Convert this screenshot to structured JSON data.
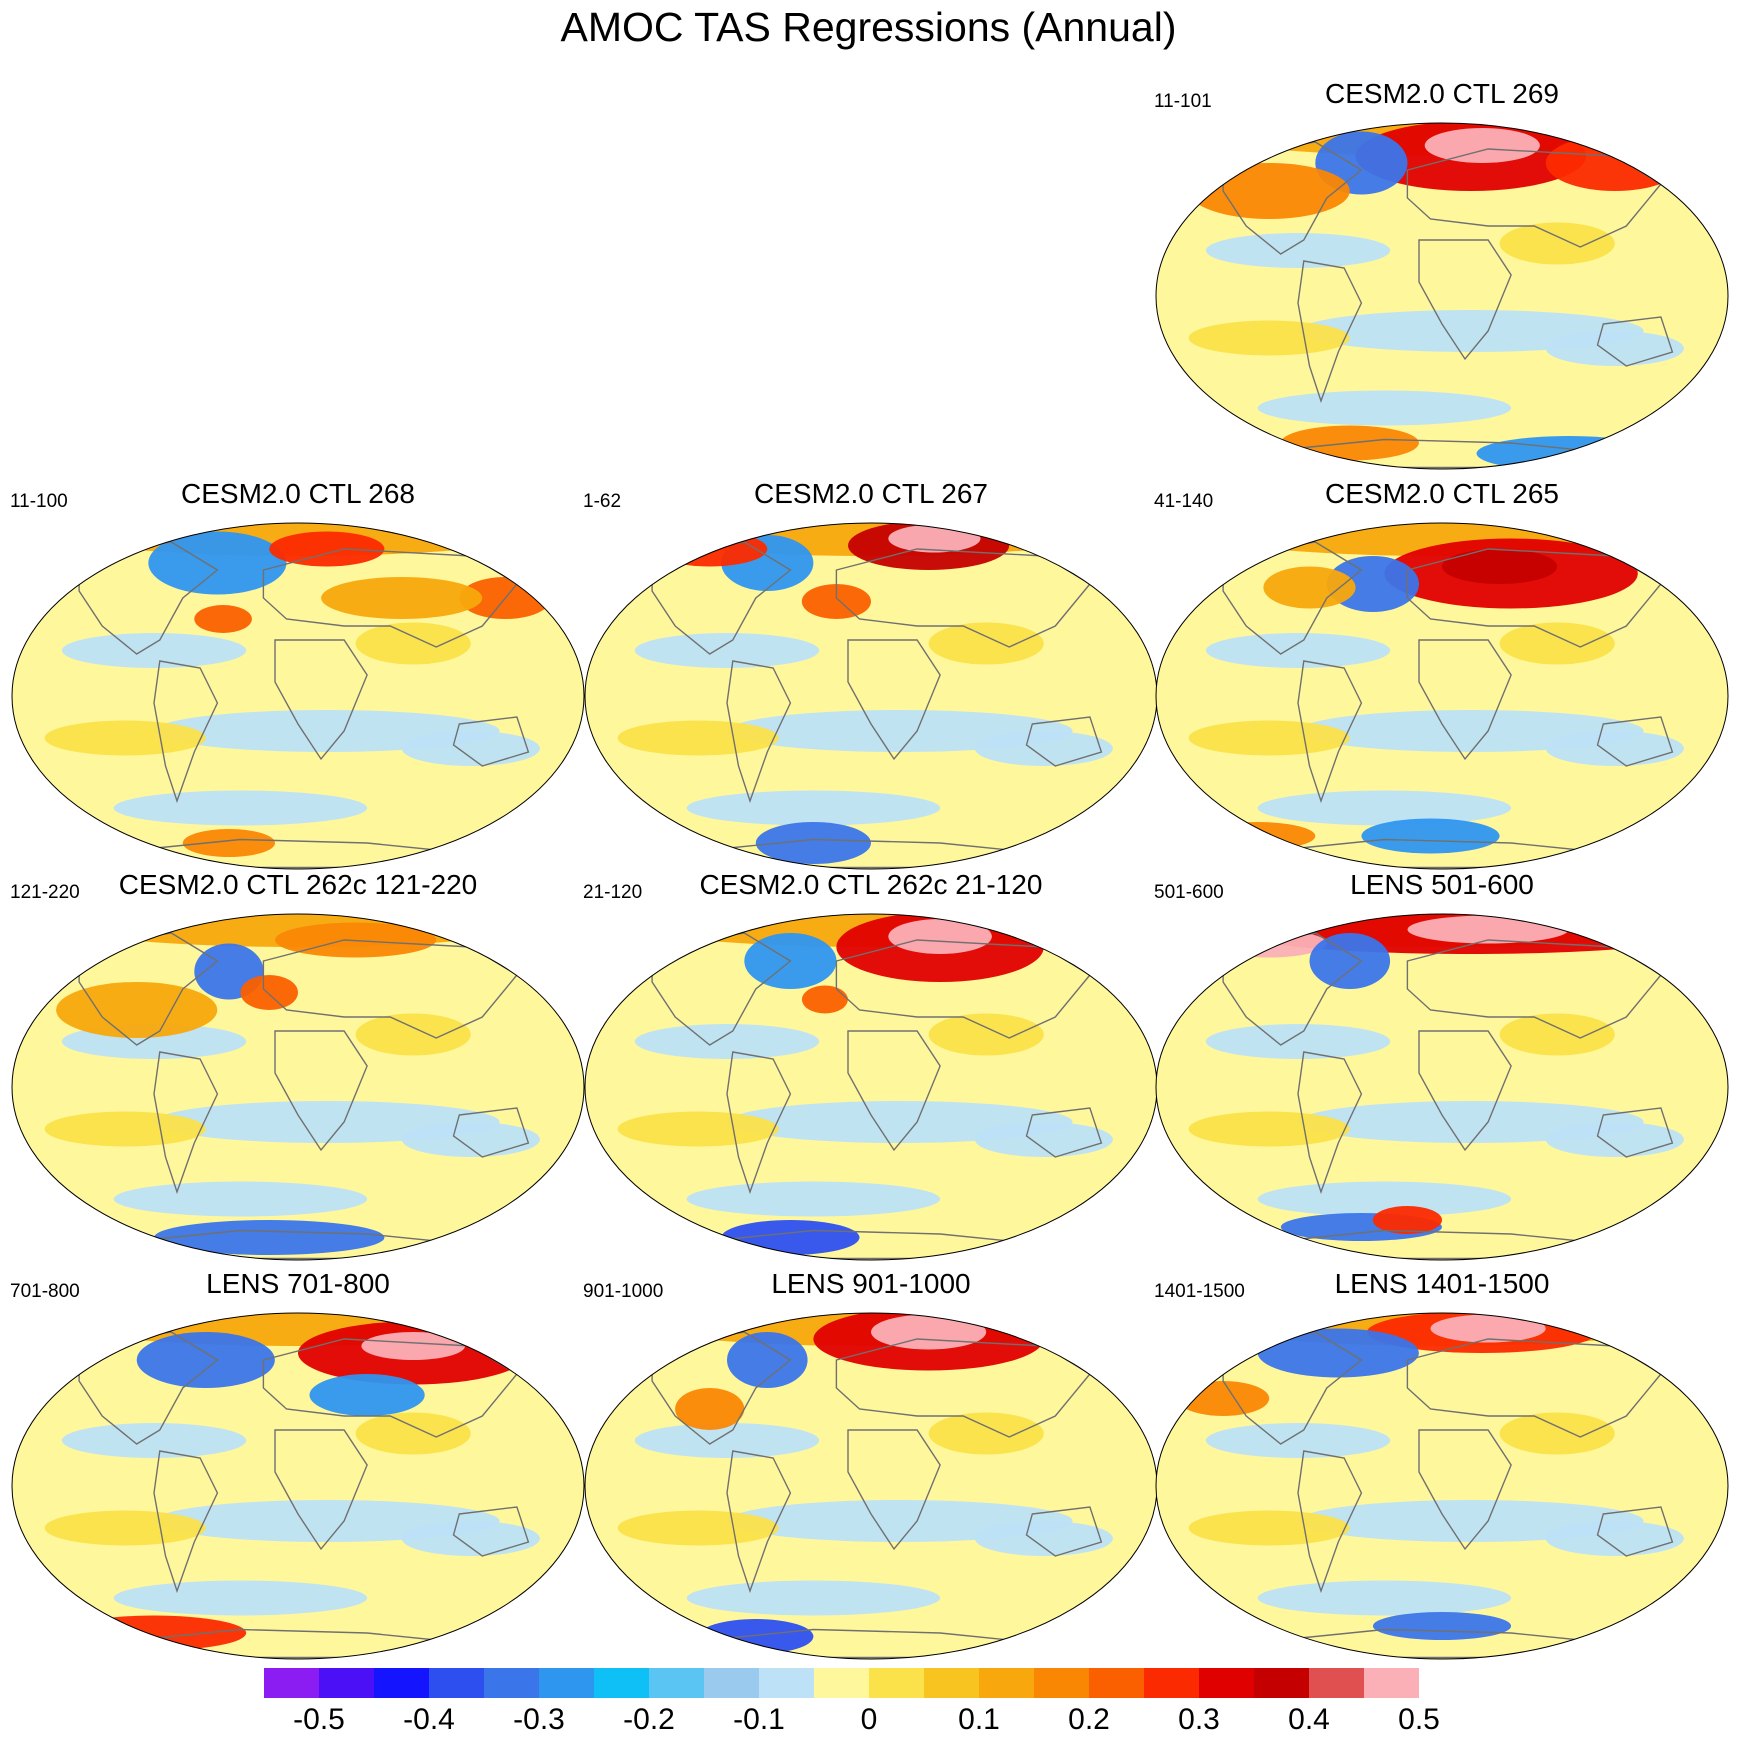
{
  "title": "AMOC TAS Regressions (Annual)",
  "panels": [
    {
      "title": "CESM2.0 CTL 269",
      "range": "11-101"
    },
    {
      "title": "CESM2.0 CTL 268",
      "range": "11-100"
    },
    {
      "title": "CESM2.0 CTL 267",
      "range": "1-62"
    },
    {
      "title": "CESM2.0 CTL 265",
      "range": "41-140"
    },
    {
      "title": "CESM2.0 CTL 262c 121-220",
      "range": "121-220"
    },
    {
      "title": "CESM2.0 CTL 262c 21-120",
      "range": "21-120"
    },
    {
      "title": "LENS 501-600",
      "range": "501-600"
    },
    {
      "title": "LENS 701-800",
      "range": "701-800"
    },
    {
      "title": "LENS 901-1000",
      "range": "901-1000"
    },
    {
      "title": "LENS 1401-1500",
      "range": "1401-1500"
    }
  ],
  "colorbar": {
    "colors": [
      "#8b1cf2",
      "#4b10f5",
      "#1414ff",
      "#2e4ff0",
      "#3b75ea",
      "#2f96f0",
      "#0ec0f5",
      "#5ac5f2",
      "#9acbee",
      "#bde2f7",
      "#fff79c",
      "#fbe24a",
      "#f8c420",
      "#f8a80c",
      "#fa8704",
      "#fb6000",
      "#fc2a00",
      "#e00000",
      "#c50000",
      "#e05050",
      "#fbb0b7"
    ],
    "labels": [
      "-0.5",
      "-0.4",
      "-0.3",
      "-0.2",
      "-0.1",
      "0",
      "0.1",
      "0.2",
      "0.3",
      "0.4",
      "0.5"
    ]
  }
}
